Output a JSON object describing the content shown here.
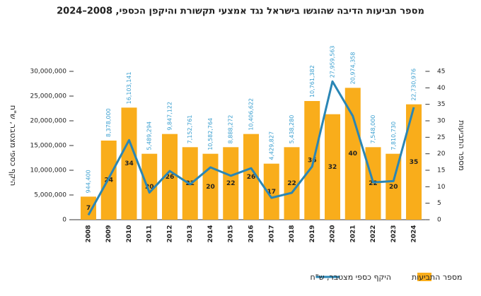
{
  "chart_data": {
    "type": "bar",
    "title": "מספר תביעות הדיבה שהוגשו בישראל נגד אמצעי תקשורת והיקפן הכספי, 2008–2024",
    "y_label": "היקף כספי מצטבר, ש\"ח",
    "y2_label": "מספר התביעות",
    "categories": [
      "2008",
      "2009",
      "2010",
      "2011",
      "2012",
      "2013",
      "2014",
      "2015",
      "2016",
      "2017",
      "2018",
      "2019",
      "2020",
      "2021",
      "2022",
      "2023",
      "2024"
    ],
    "series": [
      {
        "name": "מספר התביעות",
        "type": "bar",
        "axis": "y2",
        "color": "#f9ad1b",
        "values": [
          7,
          24,
          34,
          20,
          26,
          22,
          20,
          22,
          26,
          17,
          22,
          36,
          32,
          40,
          22,
          20,
          35
        ]
      },
      {
        "name": "היקף כספי מצטבר, ש\"ח",
        "type": "line",
        "color": "#2a86b5",
        "label_color": "#3a9fd0",
        "values": [
          944400,
          8378000,
          16103141,
          5489294,
          9847122,
          7152761,
          10582764,
          8888272,
          10406622,
          4429827,
          5438280,
          10761382,
          27959563,
          20974358,
          7548000,
          7810730,
          22730976
        ],
        "value_labels": [
          "944,400",
          "8,378,000",
          "16,103,141",
          "5,489,294",
          "9,847,122",
          "7,152,761",
          "10,582,764",
          "8,888,272",
          "10,406,622",
          "4,429,827",
          "5,438,280",
          "10,761,382",
          "27,959,563",
          "20,974,358",
          "7,548,000",
          "7,810,730",
          "22,730,976"
        ]
      }
    ],
    "ylim": [
      0,
      30000000
    ],
    "yticks": [
      0,
      {
        "value": 5000000,
        "label": "5,000,000"
      },
      {
        "value": 10000000,
        "label": "10,000,000"
      },
      {
        "value": 15000000,
        "label": "15,000,000"
      },
      {
        "value": 20000000,
        "label": "20,000,000"
      },
      {
        "value": 25000000,
        "label": "25,000,000"
      },
      {
        "value": 30000000,
        "label": "30,000,000"
      }
    ],
    "y2lim": [
      0,
      45
    ],
    "y2ticks": [
      0,
      5,
      10,
      15,
      20,
      25,
      30,
      35,
      40,
      45
    ],
    "grid": false
  }
}
